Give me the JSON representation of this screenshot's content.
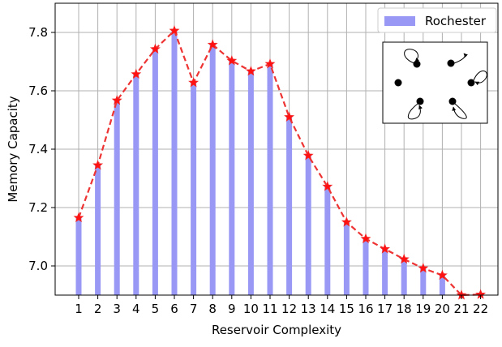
{
  "chart_data": {
    "type": "bar",
    "xlabel": "Reservoir Complexity",
    "ylabel": "Memory Capacity",
    "categories": [
      1,
      2,
      3,
      4,
      5,
      6,
      7,
      8,
      9,
      10,
      11,
      12,
      13,
      14,
      15,
      16,
      17,
      18,
      19,
      20,
      21,
      22
    ],
    "series": [
      {
        "name": "Rochester",
        "values": [
          7.165,
          7.345,
          7.567,
          7.657,
          7.743,
          7.806,
          7.628,
          7.758,
          7.703,
          7.667,
          7.692,
          7.51,
          7.378,
          7.272,
          7.15,
          7.093,
          7.058,
          7.023,
          6.992,
          6.968,
          6.9,
          6.902
        ]
      }
    ],
    "ylim": [
      6.9,
      7.9
    ],
    "yticks": [
      7.0,
      7.2,
      7.4,
      7.6,
      7.8
    ],
    "ytick_labels": [
      "7.0",
      "7.2",
      "7.4",
      "7.6",
      "7.8"
    ],
    "grid": true,
    "legend_position": "top-right",
    "colors": {
      "bar": "#9999f5",
      "line": "#ee3333",
      "marker": "#ff1111"
    }
  }
}
